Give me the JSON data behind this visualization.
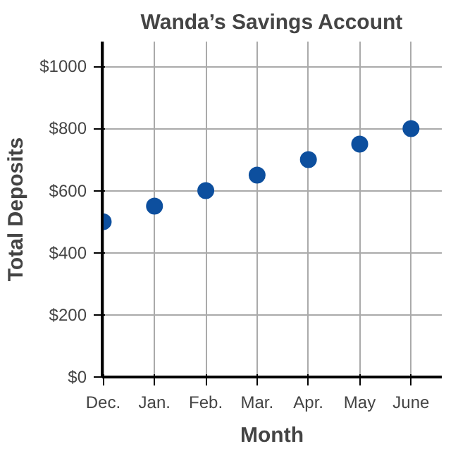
{
  "chart_data": {
    "type": "scatter",
    "title": "Wanda’s Savings Account",
    "xlabel": "Month",
    "ylabel": "Total Deposits",
    "categories": [
      "Dec.",
      "Jan.",
      "Feb.",
      "Mar.",
      "Apr.",
      "May",
      "June"
    ],
    "series": [
      {
        "color": "#0d4f9e",
        "values": [
          500,
          550,
          600,
          650,
          700,
          750,
          800
        ]
      }
    ],
    "ylim": [
      0,
      1000
    ],
    "yticks": [
      {
        "value": 0,
        "label": "$0"
      },
      {
        "value": 200,
        "label": "$200"
      },
      {
        "value": 400,
        "label": "$400"
      },
      {
        "value": 600,
        "label": "$600"
      },
      {
        "value": 800,
        "label": "$800"
      },
      {
        "value": 1000,
        "label": "$1000"
      }
    ],
    "grid": true,
    "marker": "circle"
  }
}
